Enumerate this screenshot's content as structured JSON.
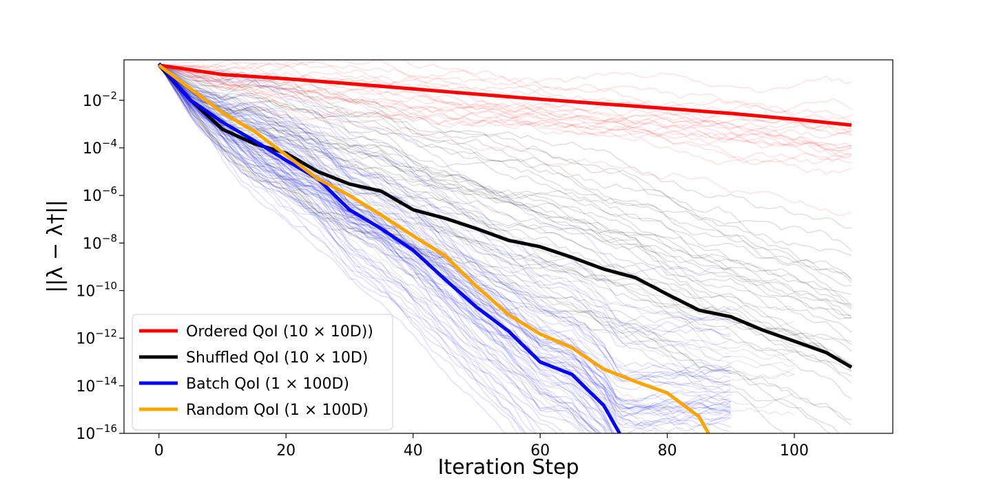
{
  "chart_data": {
    "type": "line",
    "title": "",
    "xlabel": "Iteration Step",
    "ylabel": "||λ − λ†||",
    "y_scale": "log",
    "xlim": [
      -5.5,
      115.5
    ],
    "ylim": [
      1e-16,
      0.5
    ],
    "x_ticks": [
      0,
      20,
      40,
      60,
      80,
      100
    ],
    "x_tick_labels": [
      "0",
      "20",
      "40",
      "60",
      "80",
      "100"
    ],
    "y_ticks": [
      0.01,
      0.0001,
      1e-06,
      1e-08,
      1e-10,
      1e-12,
      1e-14,
      1e-16
    ],
    "y_tick_labels": [
      {
        "base": "10",
        "exp": "−2"
      },
      {
        "base": "10",
        "exp": "−4"
      },
      {
        "base": "10",
        "exp": "−6"
      },
      {
        "base": "10",
        "exp": "−8"
      },
      {
        "base": "10",
        "exp": "−10"
      },
      {
        "base": "10",
        "exp": "−12"
      },
      {
        "base": "10",
        "exp": "−14"
      },
      {
        "base": "10",
        "exp": "−16"
      }
    ],
    "grid": false,
    "legend_position": "lower-left",
    "series": [
      {
        "name": "Ordered QoI (10 × 10D))",
        "color": "#ff0000",
        "x": [
          0,
          10,
          20,
          30,
          40,
          50,
          60,
          70,
          80,
          90,
          100,
          109
        ],
        "y": [
          0.3,
          0.12,
          0.08,
          0.05,
          0.03,
          0.018,
          0.011,
          0.007,
          0.0045,
          0.0028,
          0.0016,
          0.0009
        ]
      },
      {
        "name": "Shuffled QoI (10 × 10D)",
        "color": "#000000",
        "x": [
          0,
          5,
          10,
          15,
          20,
          25,
          30,
          35,
          40,
          45,
          50,
          55,
          60,
          65,
          70,
          75,
          80,
          85,
          90,
          95,
          100,
          105,
          109
        ],
        "y": [
          0.3,
          0.01,
          0.0006,
          0.00015,
          6e-05,
          1e-05,
          3e-06,
          1.5e-06,
          2.5e-07,
          1.1e-07,
          4e-08,
          1.3e-08,
          7e-09,
          2.5e-09,
          8e-10,
          3.5e-10,
          7e-11,
          1.5e-11,
          8e-12,
          2.2e-12,
          7.5e-13,
          2.5e-13,
          6e-14
        ]
      },
      {
        "name": "Batch QoI (1 × 100D)",
        "color": "#0000ff",
        "x": [
          0,
          5,
          10,
          15,
          20,
          25,
          30,
          35,
          40,
          45,
          50,
          55,
          60,
          65,
          70,
          72.5
        ],
        "y": [
          0.35,
          0.01,
          0.0012,
          0.0002,
          3e-05,
          5e-06,
          2.5e-07,
          4e-08,
          5e-09,
          3e-10,
          2e-11,
          2e-12,
          1e-13,
          3e-14,
          1.5e-15,
          1e-16
        ]
      },
      {
        "name": "Random QoI (1 × 100D)",
        "color": "#ffa500",
        "x": [
          0,
          5,
          10,
          15,
          20,
          25,
          30,
          35,
          40,
          45,
          50,
          55,
          60,
          65,
          70,
          75,
          80,
          85,
          86.5
        ],
        "y": [
          0.3,
          0.03,
          0.003,
          0.0005,
          5e-05,
          5e-06,
          1e-06,
          1.5e-07,
          2e-08,
          3e-09,
          1.5e-10,
          1e-11,
          1.5e-12,
          4e-13,
          5e-14,
          1.5e-14,
          5e-15,
          5e-16,
          1e-16
        ]
      }
    ]
  }
}
